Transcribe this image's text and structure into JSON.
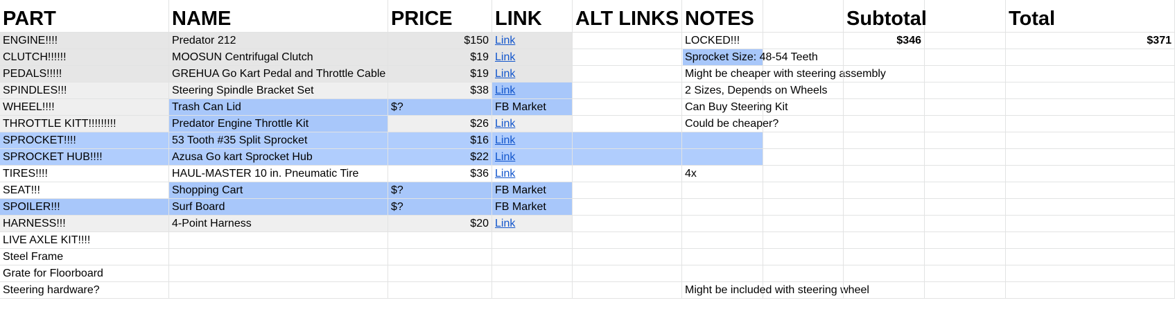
{
  "headers": [
    "PART",
    "NAME",
    "PRICE",
    "LINK",
    "ALT LINKS",
    "NOTES",
    "",
    "Subtotal",
    "",
    "Total"
  ],
  "summary": {
    "subtotal": "$346",
    "total": "$371"
  },
  "rows": [
    {
      "part": "ENGINE!!!!",
      "name": "Predator 212",
      "price": "$150",
      "link": "Link",
      "note": "LOCKED!!!"
    },
    {
      "part": "CLUTCH!!!!!!",
      "name": "MOOSUN Centrifugal Clutch",
      "price": "$19",
      "link": "Link",
      "note": "Sprocket Size: 48-54 Teeth"
    },
    {
      "part": "PEDALS!!!!!",
      "name": "GREHUA Go Kart Pedal and Throttle Cable",
      "price": "$19",
      "link": "Link",
      "note": "Might be cheaper with steering assembly"
    },
    {
      "part": "SPINDLES!!!",
      "name": "Steering Spindle Bracket Set",
      "price": "$38",
      "link": "Link",
      "note": "2 Sizes, Depends on Wheels"
    },
    {
      "part": "WHEEL!!!!",
      "name": "Trash Can Lid",
      "price": "$?",
      "link": "FB Market",
      "note": "Can Buy Steering Kit"
    },
    {
      "part": "THROTTLE KITT!!!!!!!!!",
      "name": "Predator Engine Throttle Kit",
      "price": "$26",
      "link": "Link",
      "note": "Could be cheaper?"
    },
    {
      "part": "SPROCKET!!!!",
      "name": "53 Tooth #35 Split Sprocket",
      "price": "$16",
      "link": "Link",
      "note": ""
    },
    {
      "part": "SPROCKET HUB!!!!",
      "name": "Azusa Go kart Sprocket Hub",
      "price": "$22",
      "link": "Link",
      "note": ""
    },
    {
      "part": "TIRES!!!!",
      "name": "HAUL-MASTER 10 in. Pneumatic Tire",
      "price": "$36",
      "link": "Link",
      "note": "4x"
    },
    {
      "part": "SEAT!!!",
      "name": "Shopping Cart",
      "price": "$?",
      "link": "FB Market",
      "note": ""
    },
    {
      "part": "SPOILER!!!",
      "name": "Surf Board",
      "price": "$?",
      "link": "FB Market",
      "note": ""
    },
    {
      "part": "HARNESS!!!",
      "name": "4-Point Harness",
      "price": "$20",
      "link": "Link",
      "note": ""
    },
    {
      "part": "LIVE AXLE KIT!!!!",
      "name": "",
      "price": "",
      "link": "",
      "note": ""
    },
    {
      "part": "Steel Frame",
      "name": "",
      "price": "",
      "link": "",
      "note": ""
    },
    {
      "part": "Grate for Floorboard",
      "name": "",
      "price": "",
      "link": "",
      "note": ""
    },
    {
      "part": "Steering hardware?",
      "name": "",
      "price": "",
      "link": "",
      "note": "Might be included with steering wheel"
    }
  ],
  "colors": {
    "gray": "#e6e6e6",
    "light_gray": "#efefef",
    "blue": "#a8c7fa",
    "light_blue": "#b0cdfd",
    "link": "#1155cc",
    "grid": "#e2e3e3"
  }
}
